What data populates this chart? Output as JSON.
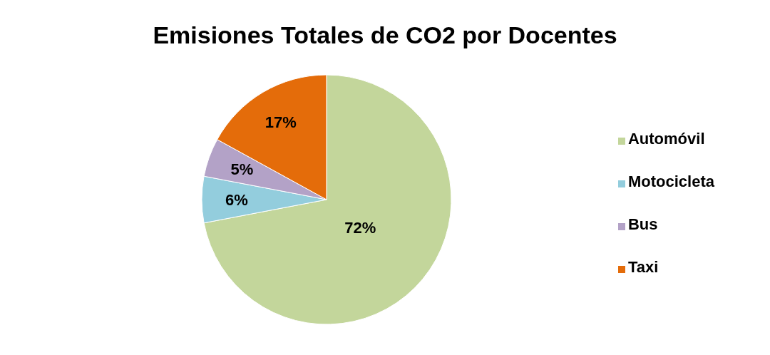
{
  "chart_data": {
    "type": "pie",
    "title": "Emisiones Totales de CO2 por Docentes",
    "categories": [
      "Automóvil",
      "Motocicleta",
      "Bus",
      "Taxi"
    ],
    "values": [
      72,
      6,
      5,
      17
    ],
    "colors": [
      "#c3d69b",
      "#93cddd",
      "#b3a2c7",
      "#e46c0a"
    ],
    "value_labels": [
      "72%",
      "6%",
      "5%",
      "17%"
    ],
    "legend": "right"
  }
}
